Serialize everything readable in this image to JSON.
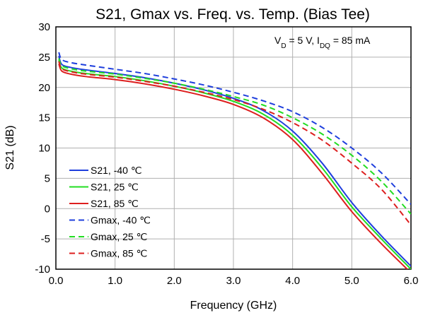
{
  "chart_data": {
    "type": "line",
    "title": "S21, Gmax vs. Freq. vs. Temp. (Bias Tee)",
    "xlabel": "Frequency (GHz)",
    "ylabel": "S21 (dB)",
    "xlim": [
      0,
      6
    ],
    "ylim": [
      -10,
      30
    ],
    "xticks": [
      "0.0",
      "1.0",
      "2.0",
      "3.0",
      "4.0",
      "5.0",
      "6.0"
    ],
    "yticks": [
      "-10",
      "-5",
      "0",
      "5",
      "10",
      "15",
      "20",
      "25",
      "30"
    ],
    "grid": true,
    "legend_position": "bottom-left",
    "annotation": {
      "vd_label": "V",
      "vd_sub": "D",
      "vd_value": " = 5 V, I",
      "idq_sub": "DQ",
      "idq_value": " = 85 mA"
    },
    "series": [
      {
        "name": "S21, -40 ℃",
        "color": "#1f3fdd",
        "dash": false,
        "x": [
          0.05,
          0.1,
          0.25,
          0.5,
          1,
          1.5,
          2,
          2.5,
          3,
          3.5,
          4,
          4.5,
          5,
          5.5,
          6
        ],
        "y": [
          25.2,
          23.8,
          23.3,
          22.9,
          22.3,
          21.6,
          20.7,
          19.6,
          18.2,
          16.2,
          12.8,
          7.5,
          1.0,
          -4.5,
          -9.5
        ]
      },
      {
        "name": "S21, 25 ℃",
        "color": "#22dd22",
        "dash": false,
        "x": [
          0.05,
          0.1,
          0.25,
          0.5,
          1,
          1.5,
          2,
          2.5,
          3,
          3.5,
          4,
          4.5,
          5,
          5.5,
          6
        ],
        "y": [
          24.5,
          23.2,
          22.7,
          22.3,
          21.8,
          21.1,
          20.2,
          19.1,
          17.7,
          15.6,
          12.1,
          6.7,
          0.3,
          -5.0,
          -10.0
        ]
      },
      {
        "name": "S21, 85 ℃",
        "color": "#dd1f1f",
        "dash": false,
        "x": [
          0.05,
          0.1,
          0.25,
          0.5,
          1,
          1.5,
          2,
          2.5,
          3,
          3.5,
          4,
          4.5,
          5,
          5.5,
          6
        ],
        "y": [
          23.9,
          22.7,
          22.2,
          21.8,
          21.3,
          20.6,
          19.7,
          18.6,
          17.2,
          15.0,
          11.4,
          5.8,
          -0.5,
          -5.8,
          -10.6
        ]
      },
      {
        "name": "Gmax, -40 ℃",
        "color": "#1f3fdd",
        "dash": true,
        "x": [
          0.05,
          0.1,
          0.25,
          0.5,
          1,
          1.5,
          2,
          2.5,
          3,
          3.5,
          4,
          4.5,
          5,
          5.5,
          6
        ],
        "y": [
          25.8,
          24.6,
          24.1,
          23.7,
          23.0,
          22.3,
          21.4,
          20.4,
          19.2,
          17.8,
          16.0,
          13.4,
          10.0,
          5.9,
          0.7
        ]
      },
      {
        "name": "Gmax, 25 ℃",
        "color": "#22dd22",
        "dash": true,
        "x": [
          0.05,
          0.1,
          0.25,
          0.5,
          1,
          1.5,
          2,
          2.5,
          3,
          3.5,
          4,
          4.5,
          5,
          5.5,
          6
        ],
        "y": [
          24.8,
          23.6,
          23.1,
          22.7,
          22.2,
          21.5,
          20.7,
          19.7,
          18.5,
          17.1,
          15.0,
          12.3,
          8.8,
          4.5,
          -0.9
        ]
      },
      {
        "name": "Gmax, 85 ℃",
        "color": "#dd1f1f",
        "dash": true,
        "x": [
          0.05,
          0.1,
          0.25,
          0.5,
          1,
          1.5,
          2,
          2.5,
          3,
          3.5,
          4,
          4.5,
          5,
          5.5,
          6
        ],
        "y": [
          24.3,
          23.1,
          22.6,
          22.2,
          21.7,
          21.0,
          20.2,
          19.2,
          18.0,
          16.4,
          14.2,
          11.3,
          7.5,
          3.2,
          -2.7
        ]
      }
    ]
  }
}
